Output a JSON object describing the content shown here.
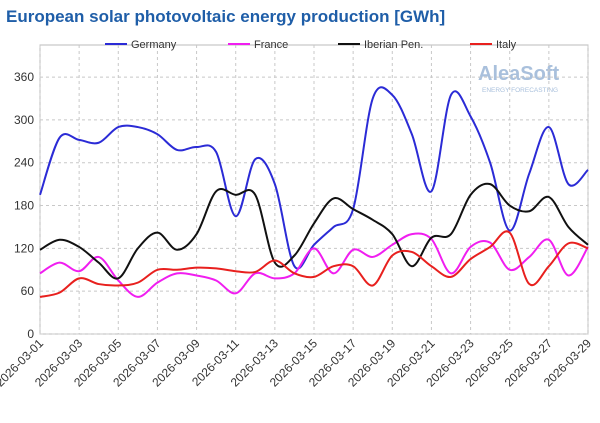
{
  "chart_data": {
    "type": "line",
    "title": "European solar photovoltaic energy production [GWh]",
    "logo": "AleaSoft",
    "logo_subtitle": "ENERGY FORECASTING",
    "categories": [
      "2026-03-01",
      null,
      "2026-03-03",
      null,
      "2026-03-05",
      null,
      "2026-03-07",
      null,
      "2026-03-09",
      null,
      "2026-03-11",
      null,
      "2026-03-13",
      null,
      "2026-03-15",
      null,
      "2026-03-17",
      null,
      "2026-03-19",
      null,
      "2026-03-21",
      null,
      "2026-03-23",
      null,
      "2026-03-25",
      null,
      "2026-03-27",
      null,
      "2026-03-29"
    ],
    "series": [
      {
        "name": "Germany",
        "color": "#2b2bd6",
        "values": [
          195,
          275,
          272,
          268,
          290,
          290,
          280,
          258,
          262,
          255,
          165,
          245,
          210,
          95,
          125,
          150,
          175,
          330,
          335,
          280,
          200,
          335,
          305,
          240,
          145,
          225,
          290,
          210,
          230
        ]
      },
      {
        "name": "France",
        "color": "#f01ef0",
        "values": [
          85,
          100,
          88,
          108,
          75,
          52,
          72,
          85,
          82,
          75,
          57,
          85,
          78,
          85,
          120,
          85,
          118,
          108,
          125,
          140,
          133,
          85,
          122,
          128,
          90,
          108,
          132,
          82,
          122
        ]
      },
      {
        "name": "Iberian Pen.",
        "color": "#111111",
        "values": [
          118,
          132,
          122,
          100,
          78,
          120,
          142,
          118,
          140,
          200,
          195,
          195,
          100,
          110,
          155,
          190,
          175,
          160,
          140,
          95,
          135,
          140,
          195,
          210,
          180,
          172,
          192,
          150,
          125
        ]
      },
      {
        "name": "Italy",
        "color": "#e8201e",
        "values": [
          52,
          58,
          78,
          70,
          68,
          72,
          90,
          90,
          93,
          92,
          88,
          87,
          103,
          85,
          80,
          95,
          95,
          68,
          110,
          115,
          95,
          80,
          105,
          122,
          142,
          70,
          95,
          127,
          120
        ]
      }
    ],
    "ylim": [
      0,
      405
    ],
    "yticks": [
      0,
      60,
      120,
      180,
      240,
      300,
      360
    ],
    "grid": true
  }
}
